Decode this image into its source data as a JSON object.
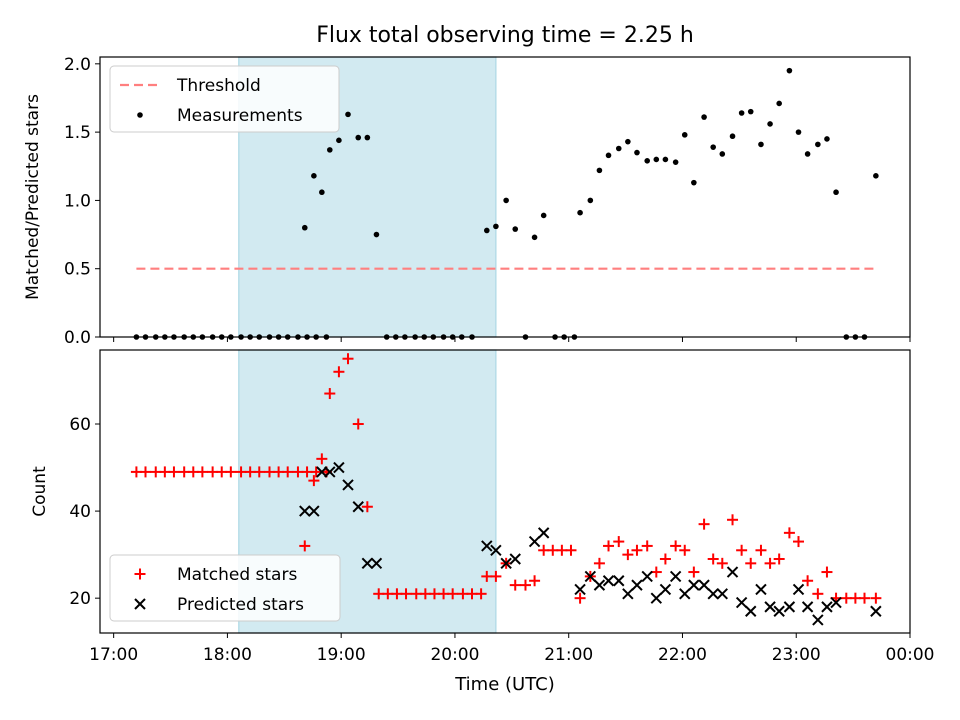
{
  "figure": {
    "title": "Flux total observing time = 2.25 h",
    "xlabel": "Time (UTC)",
    "x_ticks": [
      "17:00",
      "18:00",
      "19:00",
      "20:00",
      "21:00",
      "22:00",
      "23:00",
      "00:00"
    ]
  },
  "colors": {
    "threshold": "#ff7f7f",
    "highlight": "#add8e6",
    "matched": "#ff0000",
    "predicted": "#000000",
    "measurements": "#000000"
  },
  "chart_data": [
    {
      "type": "scatter",
      "panel": "top",
      "title": "Flux total observing time = 2.25 h",
      "xlabel": "",
      "ylabel": "Matched/Predicted stars",
      "x_unit": "hours since 17:00 UTC",
      "xlim": [
        -0.12,
        7.0
      ],
      "ylim": [
        0.0,
        2.05
      ],
      "y_ticks": [
        "0.0",
        "0.5",
        "1.0",
        "1.5",
        "2.0"
      ],
      "legend": {
        "placement": "upper-left",
        "entries": [
          "Threshold",
          "Measurements"
        ]
      },
      "highlight_span": [
        1.1,
        3.36
      ],
      "threshold": {
        "name": "Threshold",
        "y": 0.5,
        "x": [
          0.2,
          6.7
        ]
      },
      "series": [
        {
          "name": "Measurements",
          "points": [
            [
              0.2,
              0
            ],
            [
              0.28,
              0
            ],
            [
              0.37,
              0
            ],
            [
              0.45,
              0
            ],
            [
              0.53,
              0
            ],
            [
              0.62,
              0
            ],
            [
              0.7,
              0
            ],
            [
              0.78,
              0
            ],
            [
              0.87,
              0
            ],
            [
              0.95,
              0
            ],
            [
              1.03,
              0
            ],
            [
              1.12,
              0
            ],
            [
              1.2,
              0
            ],
            [
              1.28,
              0
            ],
            [
              1.37,
              0
            ],
            [
              1.45,
              0
            ],
            [
              1.53,
              0
            ],
            [
              1.62,
              0
            ],
            [
              1.7,
              0
            ],
            [
              1.78,
              0
            ],
            [
              1.87,
              0
            ],
            [
              1.68,
              0.8
            ],
            [
              1.76,
              1.18
            ],
            [
              1.83,
              1.06
            ],
            [
              1.9,
              1.37
            ],
            [
              1.98,
              1.44
            ],
            [
              2.06,
              1.63
            ],
            [
              2.15,
              1.46
            ],
            [
              2.23,
              1.46
            ],
            [
              2.31,
              0.75
            ],
            [
              2.4,
              0
            ],
            [
              2.48,
              0
            ],
            [
              2.56,
              0
            ],
            [
              2.65,
              0
            ],
            [
              2.73,
              0
            ],
            [
              2.81,
              0
            ],
            [
              2.9,
              0
            ],
            [
              2.98,
              0
            ],
            [
              3.06,
              0
            ],
            [
              3.15,
              0
            ],
            [
              3.28,
              0.78
            ],
            [
              3.36,
              0.81
            ],
            [
              3.45,
              1.0
            ],
            [
              3.53,
              0.79
            ],
            [
              3.62,
              0
            ],
            [
              3.7,
              0.73
            ],
            [
              3.78,
              0.89
            ],
            [
              3.88,
              0
            ],
            [
              3.96,
              0
            ],
            [
              4.05,
              0
            ],
            [
              4.1,
              0.91
            ],
            [
              4.19,
              1.0
            ],
            [
              4.27,
              1.22
            ],
            [
              4.35,
              1.33
            ],
            [
              4.44,
              1.38
            ],
            [
              4.52,
              1.43
            ],
            [
              4.6,
              1.35
            ],
            [
              4.69,
              1.29
            ],
            [
              4.77,
              1.3
            ],
            [
              4.85,
              1.3
            ],
            [
              4.94,
              1.28
            ],
            [
              5.02,
              1.48
            ],
            [
              5.1,
              1.13
            ],
            [
              5.19,
              1.61
            ],
            [
              5.27,
              1.39
            ],
            [
              5.35,
              1.34
            ],
            [
              5.44,
              1.47
            ],
            [
              5.52,
              1.64
            ],
            [
              5.6,
              1.65
            ],
            [
              5.69,
              1.41
            ],
            [
              5.77,
              1.56
            ],
            [
              5.85,
              1.71
            ],
            [
              5.94,
              1.95
            ],
            [
              6.02,
              1.5
            ],
            [
              6.1,
              1.34
            ],
            [
              6.19,
              1.41
            ],
            [
              6.27,
              1.45
            ],
            [
              6.35,
              1.06
            ],
            [
              6.44,
              0
            ],
            [
              6.52,
              0
            ],
            [
              6.6,
              0
            ],
            [
              6.7,
              1.18
            ]
          ]
        }
      ]
    },
    {
      "type": "scatter",
      "panel": "bottom",
      "xlabel": "Time (UTC)",
      "ylabel": "Count",
      "x_unit": "hours since 17:00 UTC",
      "xlim": [
        -0.12,
        7.0
      ],
      "ylim": [
        12,
        77
      ],
      "y_ticks": [
        "20",
        "40",
        "60"
      ],
      "legend": {
        "placement": "lower-left",
        "entries": [
          "Matched stars",
          "Predicted stars"
        ]
      },
      "highlight_span": [
        1.1,
        3.36
      ],
      "series": [
        {
          "name": "Matched stars",
          "marker": "plus",
          "points": [
            [
              0.2,
              49
            ],
            [
              0.28,
              49
            ],
            [
              0.37,
              49
            ],
            [
              0.45,
              49
            ],
            [
              0.53,
              49
            ],
            [
              0.62,
              49
            ],
            [
              0.7,
              49
            ],
            [
              0.78,
              49
            ],
            [
              0.87,
              49
            ],
            [
              0.95,
              49
            ],
            [
              1.03,
              49
            ],
            [
              1.12,
              49
            ],
            [
              1.2,
              49
            ],
            [
              1.28,
              49
            ],
            [
              1.37,
              49
            ],
            [
              1.45,
              49
            ],
            [
              1.53,
              49
            ],
            [
              1.62,
              49
            ],
            [
              1.7,
              49
            ],
            [
              1.78,
              49
            ],
            [
              1.87,
              49
            ],
            [
              1.68,
              32
            ],
            [
              1.76,
              47
            ],
            [
              1.83,
              52
            ],
            [
              1.9,
              67
            ],
            [
              1.98,
              72
            ],
            [
              2.06,
              75
            ],
            [
              2.15,
              60
            ],
            [
              2.23,
              41
            ],
            [
              2.33,
              21
            ],
            [
              2.41,
              21
            ],
            [
              2.49,
              21
            ],
            [
              2.57,
              21
            ],
            [
              2.66,
              21
            ],
            [
              2.74,
              21
            ],
            [
              2.82,
              21
            ],
            [
              2.9,
              21
            ],
            [
              2.98,
              21
            ],
            [
              3.07,
              21
            ],
            [
              3.15,
              21
            ],
            [
              3.23,
              21
            ],
            [
              3.28,
              25
            ],
            [
              3.36,
              25
            ],
            [
              3.45,
              28
            ],
            [
              3.53,
              23
            ],
            [
              3.62,
              23
            ],
            [
              3.7,
              24
            ],
            [
              3.78,
              31
            ],
            [
              3.86,
              31
            ],
            [
              3.94,
              31
            ],
            [
              4.02,
              31
            ],
            [
              4.1,
              20
            ],
            [
              4.19,
              25
            ],
            [
              4.27,
              28
            ],
            [
              4.35,
              32
            ],
            [
              4.44,
              33
            ],
            [
              4.52,
              30
            ],
            [
              4.6,
              31
            ],
            [
              4.69,
              32
            ],
            [
              4.77,
              26
            ],
            [
              4.85,
              29
            ],
            [
              4.94,
              32
            ],
            [
              5.02,
              31
            ],
            [
              5.1,
              26
            ],
            [
              5.19,
              37
            ],
            [
              5.27,
              29
            ],
            [
              5.35,
              28
            ],
            [
              5.44,
              38
            ],
            [
              5.52,
              31
            ],
            [
              5.6,
              28
            ],
            [
              5.69,
              31
            ],
            [
              5.77,
              28
            ],
            [
              5.85,
              29
            ],
            [
              5.94,
              35
            ],
            [
              6.02,
              33
            ],
            [
              6.1,
              24
            ],
            [
              6.19,
              21
            ],
            [
              6.27,
              26
            ],
            [
              6.35,
              20
            ],
            [
              6.44,
              20
            ],
            [
              6.52,
              20
            ],
            [
              6.6,
              20
            ],
            [
              6.7,
              20
            ]
          ]
        },
        {
          "name": "Predicted stars",
          "marker": "x",
          "points": [
            [
              1.68,
              40
            ],
            [
              1.76,
              40
            ],
            [
              1.83,
              49
            ],
            [
              1.9,
              49
            ],
            [
              1.98,
              50
            ],
            [
              2.06,
              46
            ],
            [
              2.15,
              41
            ],
            [
              2.23,
              28
            ],
            [
              2.31,
              28
            ],
            [
              3.28,
              32
            ],
            [
              3.36,
              31
            ],
            [
              3.45,
              28
            ],
            [
              3.53,
              29
            ],
            [
              3.7,
              33
            ],
            [
              3.78,
              35
            ],
            [
              4.1,
              22
            ],
            [
              4.19,
              25
            ],
            [
              4.27,
              23
            ],
            [
              4.35,
              24
            ],
            [
              4.44,
              24
            ],
            [
              4.52,
              21
            ],
            [
              4.6,
              23
            ],
            [
              4.69,
              25
            ],
            [
              4.77,
              20
            ],
            [
              4.85,
              22
            ],
            [
              4.94,
              25
            ],
            [
              5.02,
              21
            ],
            [
              5.1,
              23
            ],
            [
              5.19,
              23
            ],
            [
              5.27,
              21
            ],
            [
              5.35,
              21
            ],
            [
              5.44,
              26
            ],
            [
              5.52,
              19
            ],
            [
              5.6,
              17
            ],
            [
              5.69,
              22
            ],
            [
              5.77,
              18
            ],
            [
              5.85,
              17
            ],
            [
              5.94,
              18
            ],
            [
              6.02,
              22
            ],
            [
              6.1,
              18
            ],
            [
              6.19,
              15
            ],
            [
              6.27,
              18
            ],
            [
              6.35,
              19
            ],
            [
              6.7,
              17
            ]
          ]
        }
      ]
    }
  ]
}
